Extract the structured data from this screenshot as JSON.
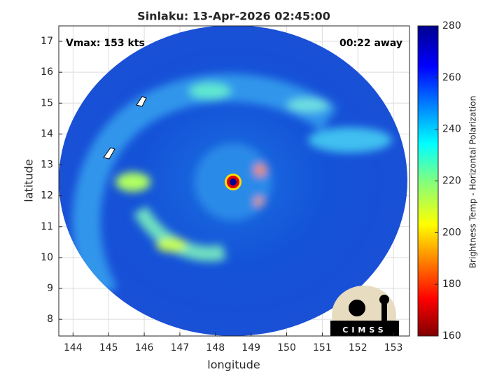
{
  "chart_data": {
    "type": "image",
    "title": "Sinlaku: 13-Apr-2026 02:45:00",
    "xlabel": "longitude",
    "ylabel": "latitude",
    "xlim": [
      143.6,
      153.45
    ],
    "ylim": [
      7.46,
      17.5
    ],
    "xticks": [
      144,
      145,
      146,
      147,
      148,
      149,
      150,
      151,
      152,
      153
    ],
    "yticks": [
      8,
      9,
      10,
      11,
      12,
      13,
      14,
      15,
      16,
      17
    ],
    "grid": true,
    "annotations": [
      "Vmax: 153 kts",
      "00:22 away"
    ],
    "colorbar": {
      "label": "Brightness Temp - Horizontal Polarization",
      "lim": [
        160,
        280
      ],
      "ticks": [
        160,
        180,
        200,
        220,
        240,
        260,
        280
      ]
    },
    "logo_text": "CIMSS"
  }
}
